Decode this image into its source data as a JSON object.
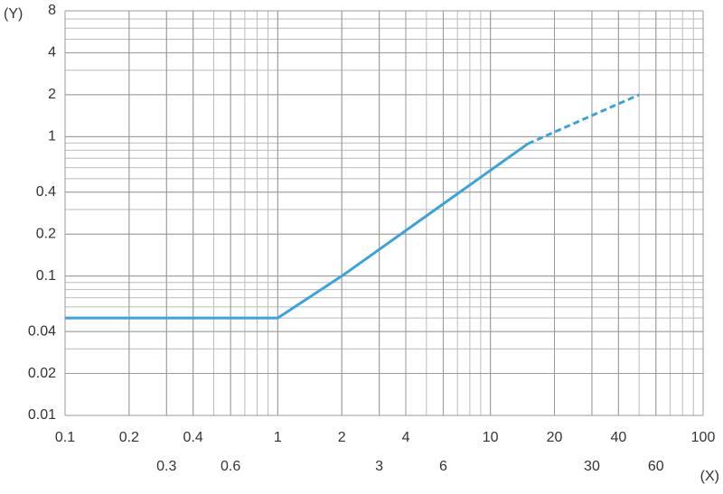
{
  "chart_data": {
    "type": "line",
    "y_label": "(Y)",
    "x_label": "(X)",
    "xscale": "log",
    "yscale": "log",
    "grid": true,
    "xlim": [
      0.1,
      100
    ],
    "ylim": [
      0.01,
      8
    ],
    "xticks": [
      0.1,
      0.2,
      0.3,
      0.4,
      0.6,
      1,
      2,
      3,
      4,
      6,
      10,
      20,
      30,
      40,
      60,
      100
    ],
    "yticks": [
      0.01,
      0.02,
      0.04,
      0.1,
      0.2,
      0.4,
      1,
      2,
      4,
      8
    ],
    "series": [
      {
        "color": "#3ba3dc",
        "style": "solid",
        "x": [
          0.1,
          1,
          2,
          15
        ],
        "values": [
          0.05,
          0.05,
          0.1,
          0.89
        ]
      },
      {
        "color": "#3ba3dc",
        "style": "dashed",
        "x": [
          15,
          50
        ],
        "values": [
          0.89,
          2
        ]
      }
    ]
  }
}
